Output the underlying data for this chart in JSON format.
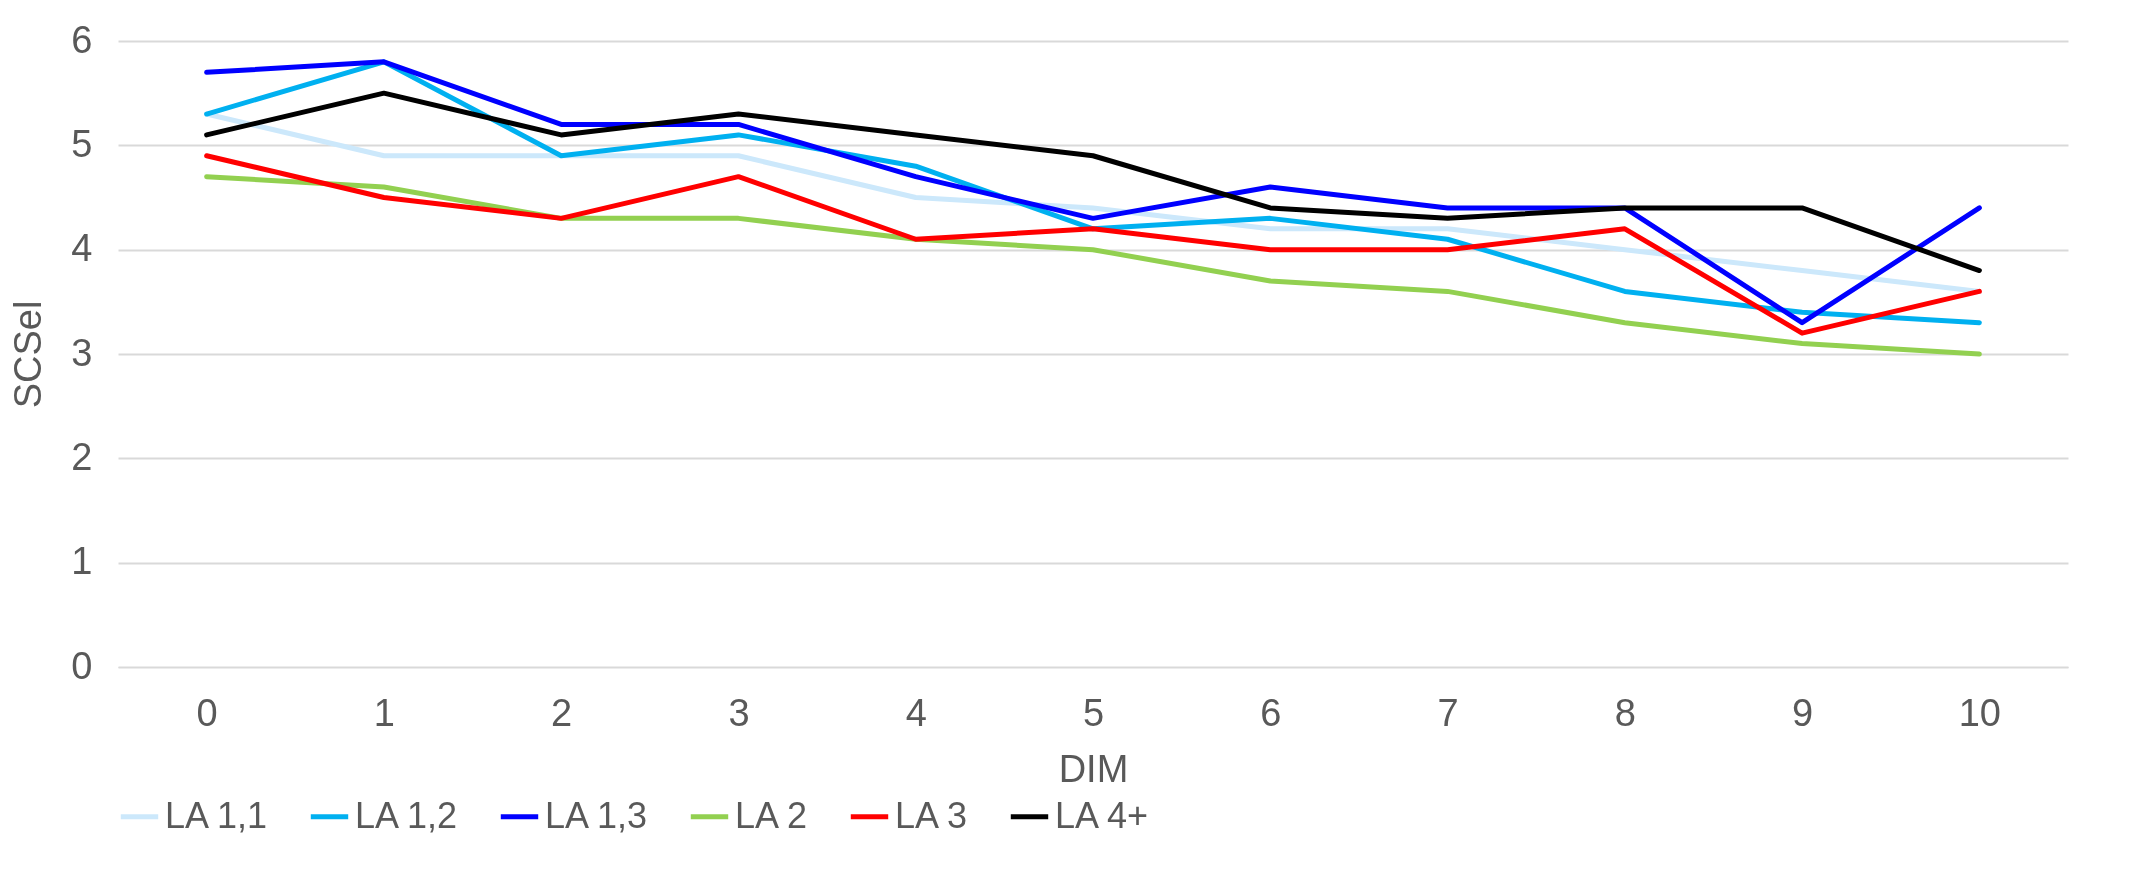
{
  "chart_data": {
    "type": "line",
    "xlabel": "DIM",
    "ylabel": "SCSel",
    "categories": [
      "0",
      "1",
      "2",
      "3",
      "4",
      "5",
      "6",
      "7",
      "8",
      "9",
      "10"
    ],
    "series": [
      {
        "name": "LA 1,1",
        "color": "#cce8fb",
        "values": [
          5.3,
          4.9,
          4.9,
          4.9,
          4.5,
          4.4,
          4.2,
          4.2,
          4.0,
          3.8,
          3.6
        ]
      },
      {
        "name": "LA 1,2",
        "color": "#00b0f0",
        "values": [
          5.3,
          5.8,
          4.9,
          5.1,
          4.8,
          4.2,
          4.3,
          4.1,
          3.6,
          3.4,
          3.3
        ]
      },
      {
        "name": "LA 1,3",
        "color": "#0000ff",
        "values": [
          5.7,
          5.8,
          5.2,
          5.2,
          4.7,
          4.3,
          4.6,
          4.4,
          4.4,
          3.3,
          4.4
        ]
      },
      {
        "name": "LA 2",
        "color": "#92d050",
        "values": [
          4.7,
          4.6,
          4.3,
          4.3,
          4.1,
          4.0,
          3.7,
          3.6,
          3.3,
          3.1,
          3.0
        ]
      },
      {
        "name": "LA 3",
        "color": "#ff0000",
        "values": [
          4.9,
          4.5,
          4.3,
          4.7,
          4.1,
          4.2,
          4.0,
          4.0,
          4.2,
          3.2,
          3.6
        ]
      },
      {
        "name": "LA 4+",
        "color": "#000000",
        "values": [
          5.1,
          5.5,
          5.1,
          5.3,
          5.1,
          4.9,
          4.4,
          4.3,
          4.4,
          4.4,
          3.8
        ]
      }
    ],
    "ylim": [
      0,
      6
    ],
    "yticks": [
      0,
      1,
      2,
      3,
      4,
      5,
      6
    ],
    "grid": "y",
    "legend": "bottom",
    "marker": "none",
    "line_style": "solid"
  }
}
